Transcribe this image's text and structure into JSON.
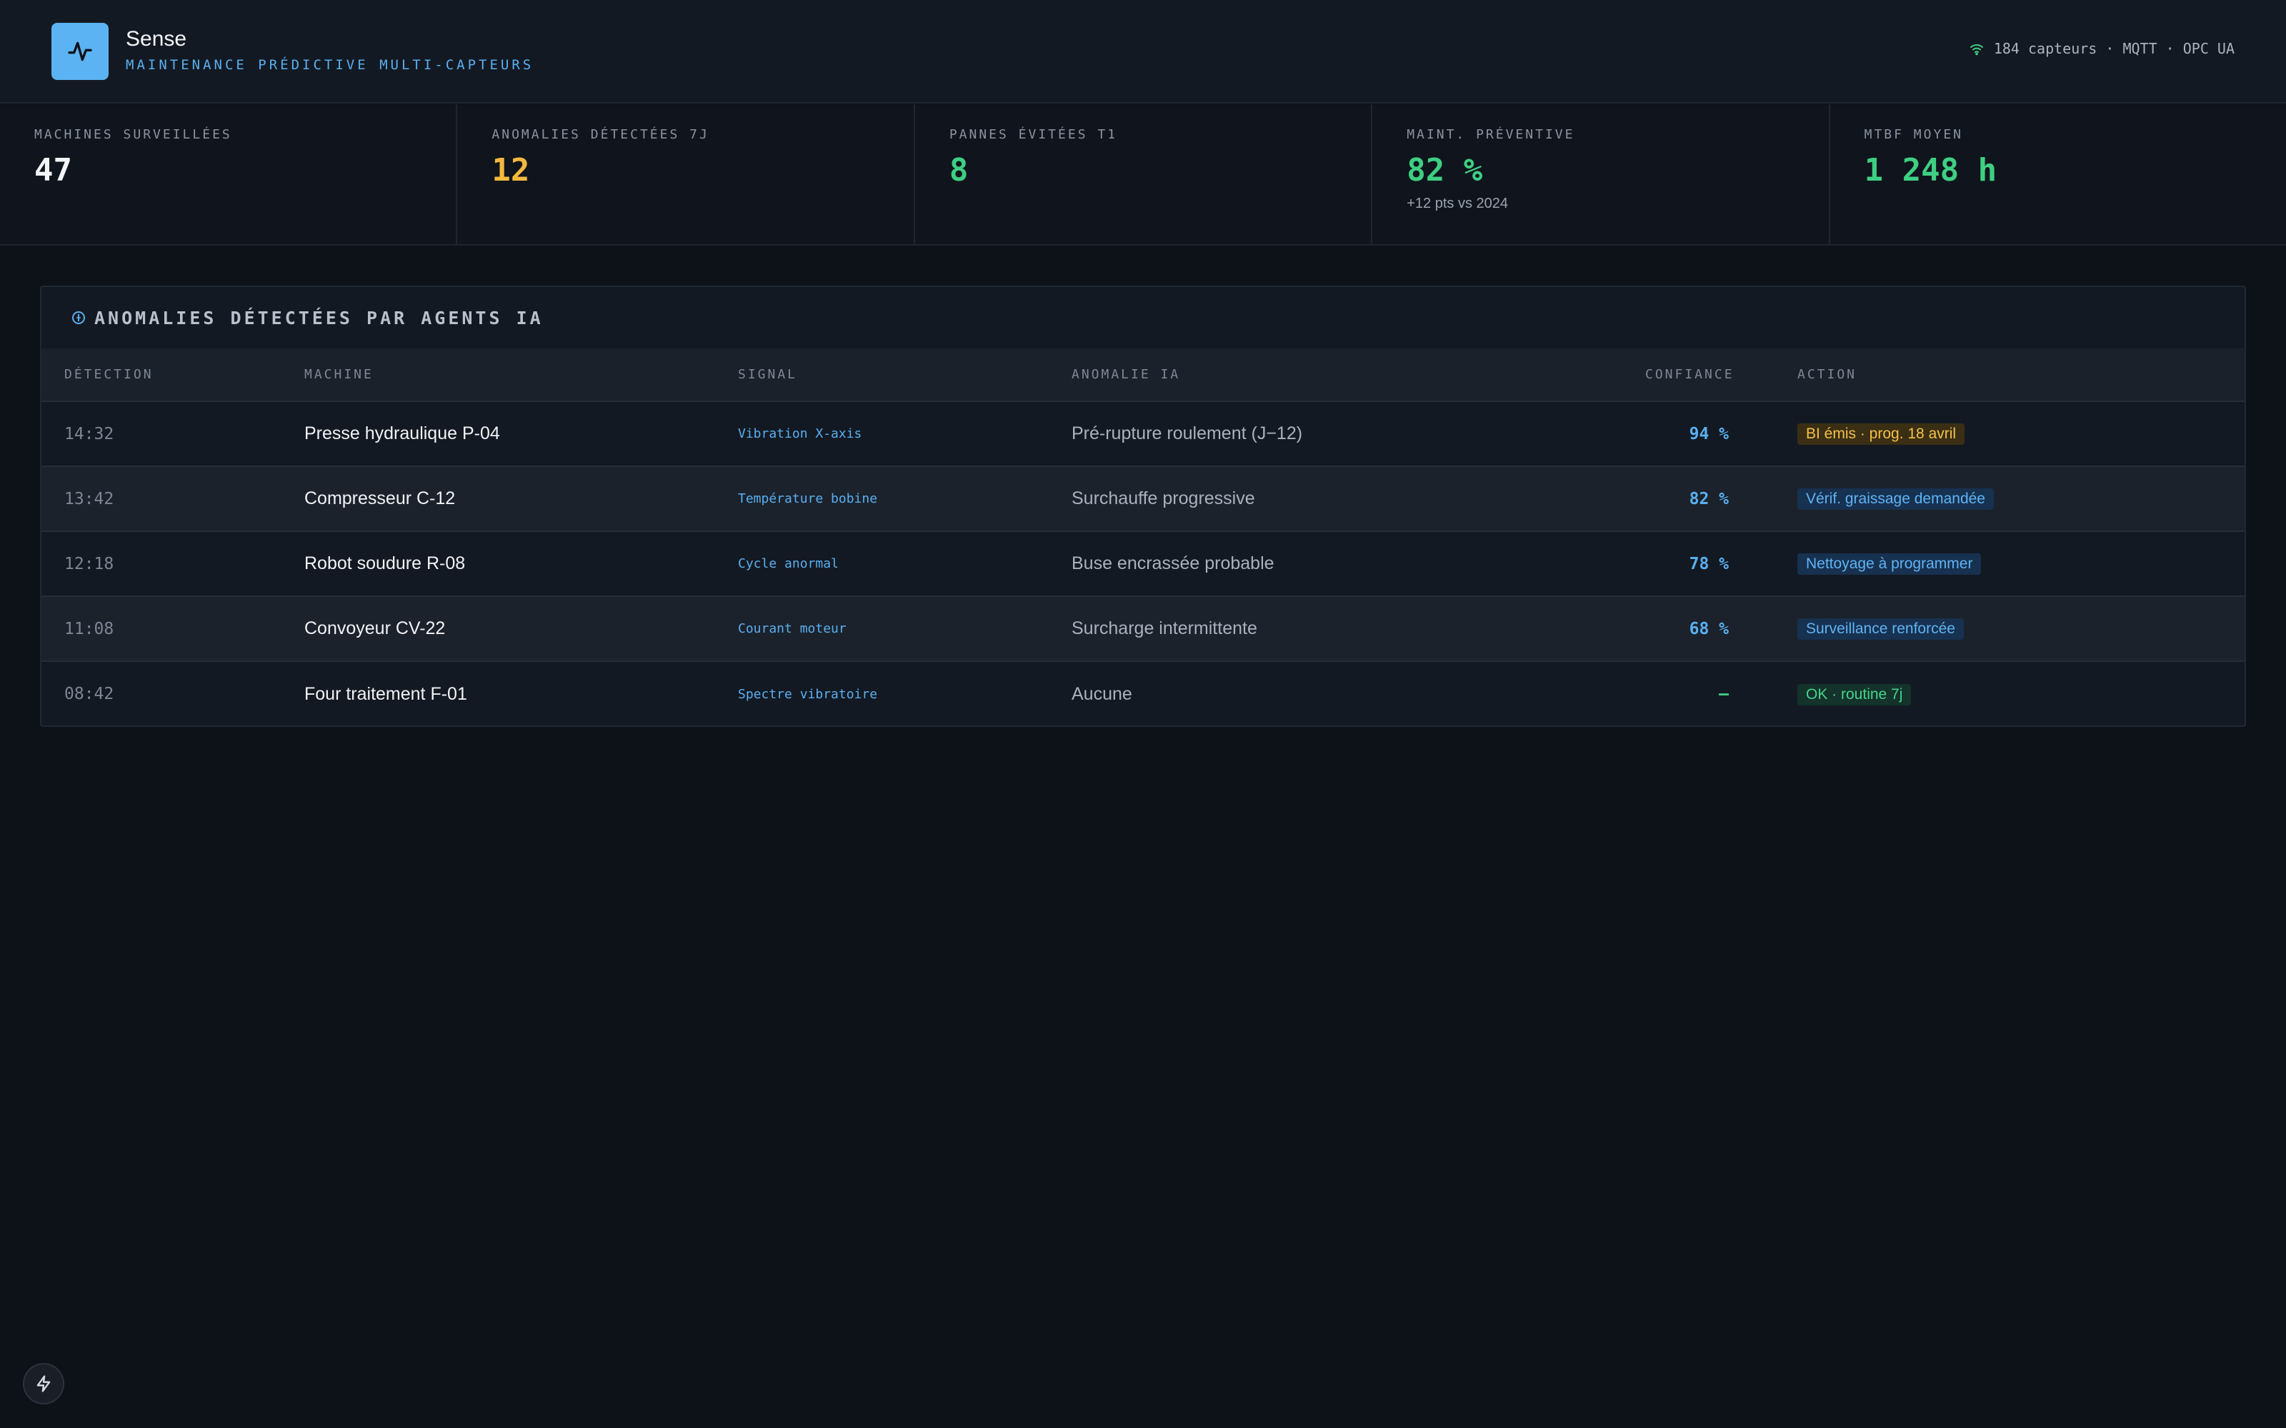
{
  "app": {
    "name": "Sense",
    "subtitle": "MAINTENANCE PRÉDICTIVE MULTI-CAPTEURS",
    "status": "184 capteurs · MQTT · OPC UA"
  },
  "kpis": [
    {
      "label": "MACHINES SURVEILLÉES",
      "value": "47",
      "color": "#f2f4f8",
      "note": ""
    },
    {
      "label": "ANOMALIES DÉTECTÉES 7J",
      "value": "12",
      "color": "#f5b83d",
      "note": ""
    },
    {
      "label": "PANNES ÉVITÉES T1",
      "value": "8",
      "color": "#3ecf82",
      "note": ""
    },
    {
      "label": "MAINT. PRÉVENTIVE",
      "value": "82 %",
      "color": "#3ecf82",
      "note": "+12 pts vs 2024"
    },
    {
      "label": "MTBF MOYEN",
      "value": "1 248 h",
      "color": "#3ecf82",
      "note": ""
    }
  ],
  "panel": {
    "title": "ANOMALIES DÉTECTÉES PAR AGENTS IA",
    "columns": {
      "detection": "DÉTECTION",
      "machine": "MACHINE",
      "signal": "SIGNAL",
      "anomaly": "ANOMALIE IA",
      "confidence": "CONFIANCE",
      "action": "ACTION"
    },
    "rows": [
      {
        "time": "14:32",
        "machine": "Presse hydraulique P-04",
        "signal": "Vibration X-axis",
        "anomaly": "Pré-rupture roulement (J−12)",
        "confidence": "94 %",
        "action": "BI émis · prog. 18 avril",
        "action_type": "warn"
      },
      {
        "time": "13:42",
        "machine": "Compresseur C-12",
        "signal": "Température bobine",
        "anomaly": "Surchauffe progressive",
        "confidence": "82 %",
        "action": "Vérif. graissage demandée",
        "action_type": "info"
      },
      {
        "time": "12:18",
        "machine": "Robot soudure R-08",
        "signal": "Cycle anormal",
        "anomaly": "Buse encrassée probable",
        "confidence": "78 %",
        "action": "Nettoyage à programmer",
        "action_type": "info"
      },
      {
        "time": "11:08",
        "machine": "Convoyeur CV-22",
        "signal": "Courant moteur",
        "anomaly": "Surcharge intermittente",
        "confidence": "68 %",
        "action": "Surveillance renforcée",
        "action_type": "info"
      },
      {
        "time": "08:42",
        "machine": "Four traitement F-01",
        "signal": "Spectre vibratoire",
        "anomaly": "Aucune",
        "confidence": "—",
        "action": "OK · routine 7j",
        "action_type": "ok"
      }
    ]
  },
  "icons": {
    "logo": "pulse-icon",
    "status": "wifi-icon",
    "panel": "info-icon",
    "fab": "lightning-icon"
  },
  "colors": {
    "accent": "#5cb3f3",
    "warning": "#f5b83d",
    "success": "#3ecf82"
  }
}
